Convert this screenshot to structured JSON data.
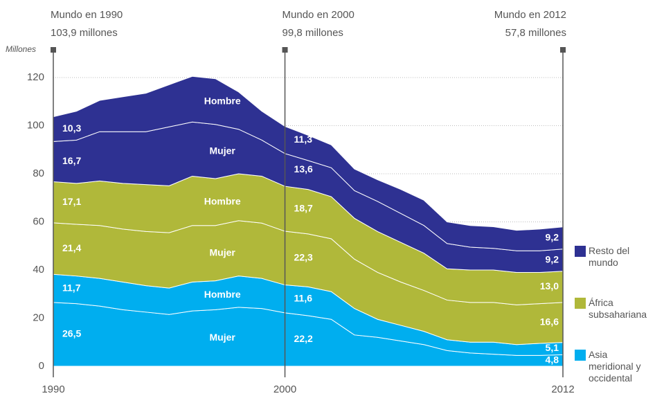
{
  "chart_data": {
    "type": "stacked_area",
    "y_label": "Millones",
    "x": [
      1990,
      1991,
      1992,
      1993,
      1994,
      1995,
      1996,
      1997,
      1998,
      1999,
      2000,
      2001,
      2002,
      2003,
      2004,
      2005,
      2006,
      2007,
      2008,
      2009,
      2010,
      2011,
      2012
    ],
    "xlim": [
      1990,
      2012
    ],
    "xticks": [
      1990,
      2000,
      2012
    ],
    "ylim": [
      0,
      130
    ],
    "yticks": [
      0,
      20,
      40,
      60,
      80,
      100,
      120
    ],
    "grid": true,
    "annotations": [
      {
        "x": 1990,
        "title": "Mundo en 1990",
        "text": "103,9 millones",
        "align": "left"
      },
      {
        "x": 2000,
        "title": "Mundo en 2000",
        "text": "99,8 millones",
        "align": "left"
      },
      {
        "x": 2012,
        "title": "Mundo en  2012",
        "text": "57,8 millones",
        "align": "right"
      }
    ],
    "legend": [
      {
        "name": "Resto del mundo",
        "color": "#2e3192"
      },
      {
        "name": "África subsahariana",
        "color": "#b0b83a"
      },
      {
        "name": "Asia meridional y occidental",
        "color": "#00aeef"
      }
    ],
    "series": [
      {
        "name": "Mujer",
        "color": "#00aeef",
        "values": [
          26.5,
          26,
          25,
          23.5,
          22.5,
          21.5,
          23,
          23.5,
          24.5,
          24,
          22.2,
          21,
          19.5,
          13,
          12,
          10.5,
          9,
          6.5,
          5.5,
          5,
          4.5,
          4.5,
          4.8
        ],
        "value_labels": [
          "26,5",
          null,
          null,
          null,
          null,
          null,
          null,
          null,
          null,
          null,
          "22,2",
          null,
          null,
          null,
          null,
          null,
          null,
          null,
          null,
          null,
          null,
          null,
          "4,8"
        ]
      },
      {
        "name": "Hombre",
        "color": "#00aeef",
        "values": [
          11.7,
          11.5,
          11.5,
          11.5,
          11,
          11,
          12,
          12,
          13,
          12.5,
          11.6,
          12,
          11.5,
          11,
          7.5,
          6.5,
          5.5,
          4.5,
          4.5,
          5,
          4.5,
          5,
          5.1
        ],
        "value_labels": [
          "11,7",
          null,
          null,
          null,
          null,
          null,
          null,
          null,
          null,
          null,
          "11,6",
          null,
          null,
          null,
          null,
          null,
          null,
          null,
          null,
          null,
          null,
          null,
          "5,1"
        ]
      },
      {
        "name": "Mujer",
        "color": "#b0b83a",
        "values": [
          21.4,
          21.5,
          22,
          22,
          22.5,
          23,
          23.5,
          23,
          23,
          23,
          22.3,
          22,
          22,
          20.5,
          19.5,
          18,
          17,
          16.5,
          16.5,
          16.5,
          16.5,
          16.5,
          16.6
        ],
        "value_labels": [
          "21,4",
          null,
          null,
          null,
          null,
          null,
          null,
          null,
          null,
          null,
          "22,3",
          null,
          null,
          null,
          null,
          null,
          null,
          null,
          null,
          null,
          null,
          null,
          "16,6"
        ]
      },
      {
        "name": "Hombre",
        "color": "#b0b83a",
        "values": [
          17.1,
          17,
          18.5,
          19,
          19.5,
          19.5,
          20.5,
          19.5,
          19.5,
          19.5,
          18.7,
          18.5,
          17.5,
          17,
          17,
          16.5,
          15.5,
          13,
          13.5,
          13.5,
          13.5,
          13,
          13.0
        ],
        "value_labels": [
          "17,1",
          null,
          null,
          null,
          null,
          null,
          null,
          null,
          null,
          null,
          "18,7",
          null,
          null,
          null,
          null,
          null,
          null,
          null,
          null,
          null,
          null,
          null,
          "13,0"
        ]
      },
      {
        "name": "Mujer",
        "color": "#2e3192",
        "values": [
          16.7,
          18,
          20.5,
          21.5,
          22,
          24.5,
          22.5,
          22.5,
          18.5,
          15,
          13.6,
          12,
          12,
          11.5,
          12.5,
          12,
          11.5,
          10.5,
          9.5,
          9,
          9,
          9,
          9.2
        ],
        "value_labels": [
          "16,7",
          null,
          null,
          null,
          null,
          null,
          null,
          null,
          null,
          null,
          "13,6",
          null,
          null,
          null,
          null,
          null,
          null,
          null,
          null,
          null,
          null,
          null,
          "9,2"
        ]
      },
      {
        "name": "Hombre",
        "color": "#2e3192",
        "values": [
          10.3,
          12,
          13,
          14.5,
          16,
          17.5,
          19,
          19,
          15.5,
          12,
          11.3,
          10.5,
          9.5,
          9,
          9,
          10,
          10.5,
          9,
          9,
          9,
          8.5,
          9,
          9.2
        ],
        "value_labels": [
          "10,3",
          null,
          null,
          null,
          null,
          null,
          null,
          null,
          null,
          null,
          "11,3",
          null,
          null,
          null,
          null,
          null,
          null,
          null,
          null,
          null,
          null,
          null,
          "9,2"
        ]
      }
    ]
  }
}
